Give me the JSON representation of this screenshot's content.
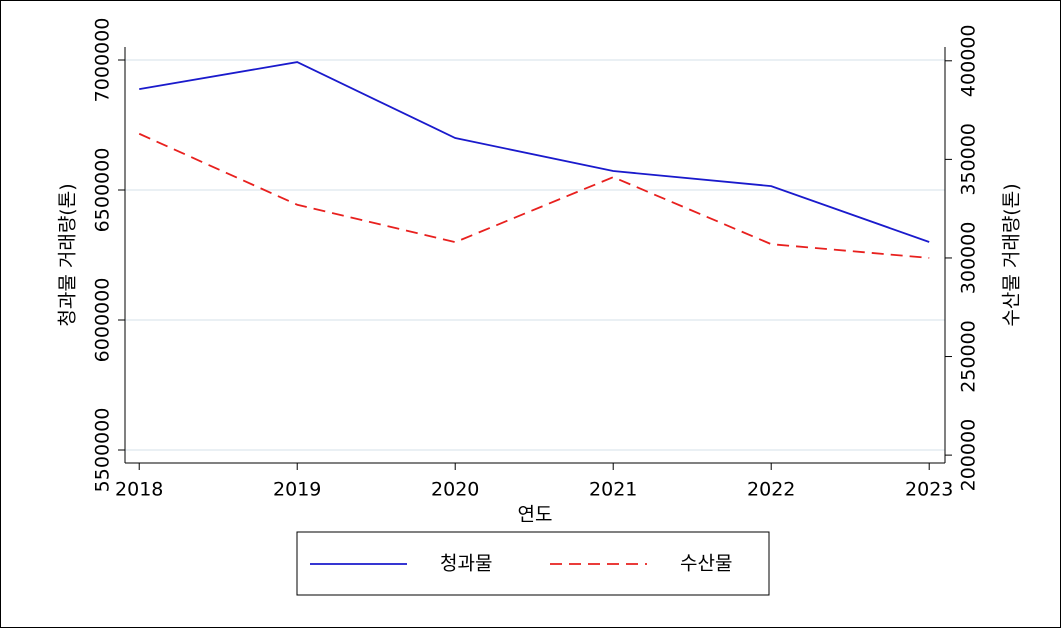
{
  "chart_data": {
    "type": "line",
    "x_label": "연도",
    "y_label": "청과물 거래량(톤)",
    "y2_label": "수산물 거래량(톤)",
    "x": [
      2018,
      2019,
      2020,
      2021,
      2022,
      2023
    ],
    "xlim": [
      2017.91,
      2023.1
    ],
    "xticks": [
      2018,
      2019,
      2020,
      2021,
      2022,
      2023
    ],
    "ylim": [
      5450000,
      7050000
    ],
    "yticks": [
      5500000,
      6000000,
      6500000,
      7000000
    ],
    "y2lim": [
      196000,
      407000
    ],
    "y2ticks": [
      200000,
      250000,
      300000,
      350000,
      400000
    ],
    "grid": true,
    "legend": "bottom",
    "series": [
      {
        "name": "청과물",
        "color": "#1a1acc",
        "dash": false,
        "values": [
          6888000,
          6992000,
          6700000,
          6573000,
          6515000,
          6300000
        ]
      },
      {
        "name": "수산물",
        "color": "#e8201e",
        "dash": true,
        "axis": "y2",
        "values": [
          363000,
          327000,
          308000,
          341000,
          307000,
          300000
        ]
      }
    ]
  }
}
